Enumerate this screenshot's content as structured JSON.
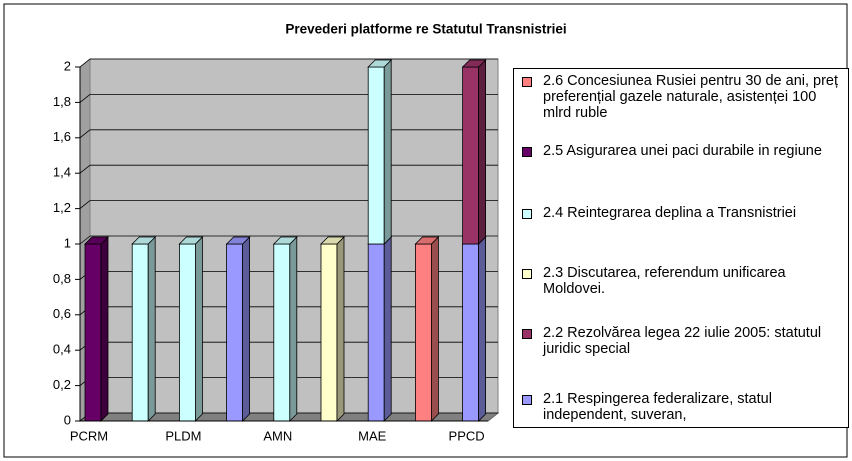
{
  "chart_data": {
    "type": "bar3d_stacked",
    "title": "Prevederi platforme re Statutul Transnistriei",
    "categories": [
      "PCRM",
      null,
      "PLDM",
      null,
      "AMN",
      null,
      "MAE",
      null,
      "PPCD"
    ],
    "series": [
      {
        "name": "2.1 Respingerea federalizare, statul independent, suveran,",
        "color": "#9999ff",
        "values": [
          0,
          0,
          0,
          1,
          0,
          0,
          1,
          0,
          1
        ]
      },
      {
        "name": "2.2 Rezolvărea legea 22 iulie 2005: statutul juridic special",
        "color": "#993366",
        "values": [
          0,
          0,
          0,
          0,
          0,
          0,
          0,
          0,
          1
        ]
      },
      {
        "name": "2.3 Discutarea, referendum unificarea Moldovei.",
        "color": "#ffffcc",
        "values": [
          0,
          0,
          0,
          0,
          0,
          1,
          0,
          0,
          0
        ]
      },
      {
        "name": "2.4 Reintegrarea deplina a Transnistriei",
        "color": "#ccffff",
        "values": [
          0,
          1,
          1,
          0,
          1,
          0,
          1,
          0,
          0
        ]
      },
      {
        "name": "2.5 Asigurarea unei paci durabile in regiune",
        "color": "#660066",
        "values": [
          1,
          0,
          0,
          0,
          0,
          0,
          0,
          0,
          0
        ]
      },
      {
        "name": "2.6 Concesiunea Rusiei pentru 30 de ani, preț preferențial gazele naturale, asistenței 100 mlrd ruble",
        "color": "#ff8080",
        "values": [
          0,
          0,
          0,
          0,
          0,
          0,
          0,
          1,
          0
        ]
      }
    ],
    "ylim": [
      0,
      2
    ],
    "yticks": [
      0,
      {
        "value": 0.2,
        "label": "0,2"
      },
      {
        "value": 0.4,
        "label": "0,4"
      },
      {
        "value": 0.6,
        "label": "0,6"
      },
      {
        "value": 0.8,
        "label": "0,8"
      },
      1,
      {
        "value": 1.2,
        "label": "1,2"
      },
      {
        "value": 1.4,
        "label": "1,4"
      },
      {
        "value": 1.6,
        "label": "1,6"
      },
      {
        "value": 1.8,
        "label": "1,8"
      },
      2
    ],
    "grid": true,
    "legend": "right"
  }
}
